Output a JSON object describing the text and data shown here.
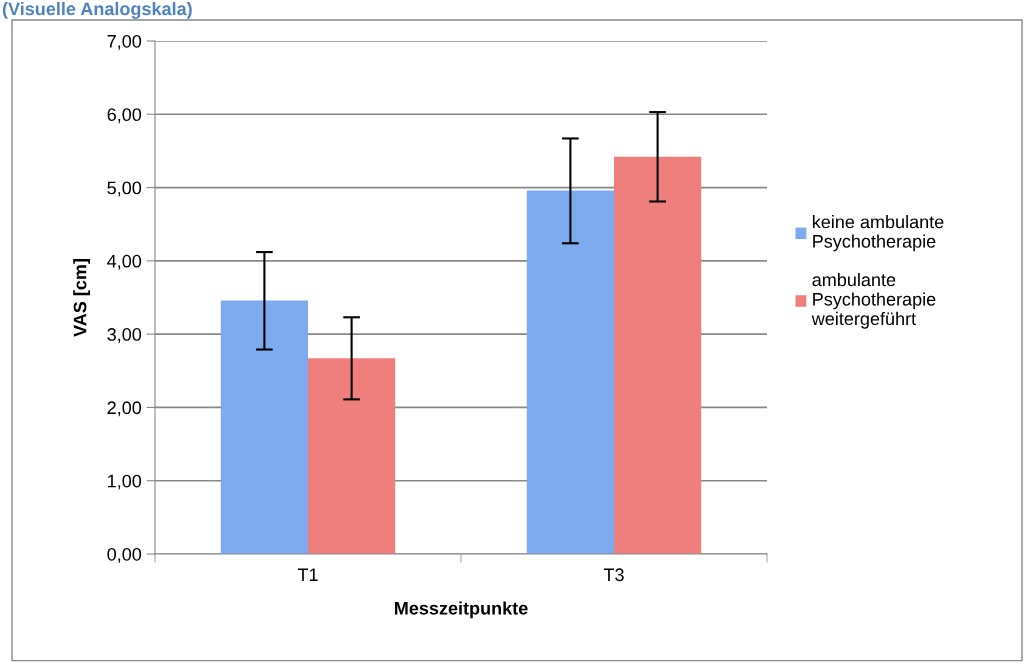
{
  "chart_data": {
    "type": "bar",
    "title": "(Visuelle Analogskala)",
    "xlabel": "Messzeitpunkte",
    "ylabel": "VAS [cm]",
    "categories": [
      "T1",
      "T3"
    ],
    "series": [
      {
        "name": "keine ambulante Psychotherapie",
        "color": "#7eaaf0",
        "values": [
          3.46,
          4.96
        ],
        "errors": [
          [
            2.79,
            4.12
          ],
          [
            4.24,
            5.67
          ]
        ]
      },
      {
        "name": "ambulante Psychotherapie weitergeführt",
        "color": "#ee7f7c",
        "values": [
          2.67,
          5.42
        ],
        "errors": [
          [
            2.11,
            3.23
          ],
          [
            4.81,
            6.03
          ]
        ]
      }
    ],
    "ylim": [
      0,
      7
    ],
    "yticks": [
      {
        "value": 0,
        "label": "0,00"
      },
      {
        "value": 1,
        "label": "1,00"
      },
      {
        "value": 2,
        "label": "2,00"
      },
      {
        "value": 3,
        "label": "3,00"
      },
      {
        "value": 4,
        "label": "4,00"
      },
      {
        "value": 5,
        "label": "5,00"
      },
      {
        "value": 6,
        "label": "6,00"
      },
      {
        "value": 7,
        "label": "7,00"
      }
    ],
    "grid": "y",
    "legend": "right"
  }
}
